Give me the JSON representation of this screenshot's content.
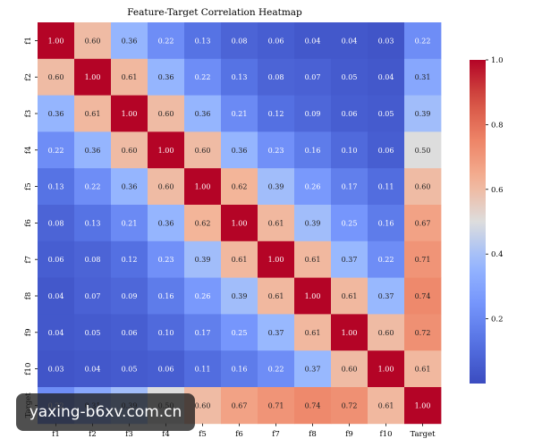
{
  "chart_data": {
    "type": "heatmap",
    "title": "Feature-Target Correlation Heatmap",
    "x_labels": [
      "f1",
      "f2",
      "f3",
      "f4",
      "f5",
      "f6",
      "f7",
      "f8",
      "f9",
      "f10",
      "Target"
    ],
    "y_labels": [
      "f1",
      "f2",
      "f3",
      "f4",
      "f5",
      "f6",
      "f7",
      "f8",
      "f9",
      "f10",
      "Target"
    ],
    "values": [
      [
        1.0,
        0.6,
        0.36,
        0.22,
        0.13,
        0.08,
        0.06,
        0.04,
        0.04,
        0.03,
        0.22
      ],
      [
        0.6,
        1.0,
        0.61,
        0.36,
        0.22,
        0.13,
        0.08,
        0.07,
        0.05,
        0.04,
        0.31
      ],
      [
        0.36,
        0.61,
        1.0,
        0.6,
        0.36,
        0.21,
        0.12,
        0.09,
        0.06,
        0.05,
        0.39
      ],
      [
        0.22,
        0.36,
        0.6,
        1.0,
        0.6,
        0.36,
        0.23,
        0.16,
        0.1,
        0.06,
        0.5
      ],
      [
        0.13,
        0.22,
        0.36,
        0.6,
        1.0,
        0.62,
        0.39,
        0.26,
        0.17,
        0.11,
        0.6
      ],
      [
        0.08,
        0.13,
        0.21,
        0.36,
        0.62,
        1.0,
        0.61,
        0.39,
        0.25,
        0.16,
        0.67
      ],
      [
        0.06,
        0.08,
        0.12,
        0.23,
        0.39,
        0.61,
        1.0,
        0.61,
        0.37,
        0.22,
        0.71
      ],
      [
        0.04,
        0.07,
        0.09,
        0.16,
        0.26,
        0.39,
        0.61,
        1.0,
        0.61,
        0.37,
        0.74
      ],
      [
        0.04,
        0.05,
        0.06,
        0.1,
        0.17,
        0.25,
        0.37,
        0.61,
        1.0,
        0.6,
        0.72
      ],
      [
        0.03,
        0.04,
        0.05,
        0.06,
        0.11,
        0.16,
        0.22,
        0.37,
        0.6,
        1.0,
        0.61
      ],
      [
        0.22,
        0.31,
        0.39,
        0.5,
        0.6,
        0.67,
        0.71,
        0.74,
        0.72,
        0.61,
        1.0
      ]
    ],
    "colormap": "coolwarm",
    "colorbar": {
      "range": [
        0.0,
        1.0
      ],
      "ticks": [
        "0.2",
        "0.4",
        "0.6",
        "0.8",
        "1.0"
      ]
    },
    "grid": false
  },
  "watermark": {
    "text": "yaxing-b6xv.com.cn"
  },
  "colors": {
    "low": "#3b4cc0",
    "mid": "#dddddd",
    "high": "#b40426"
  }
}
